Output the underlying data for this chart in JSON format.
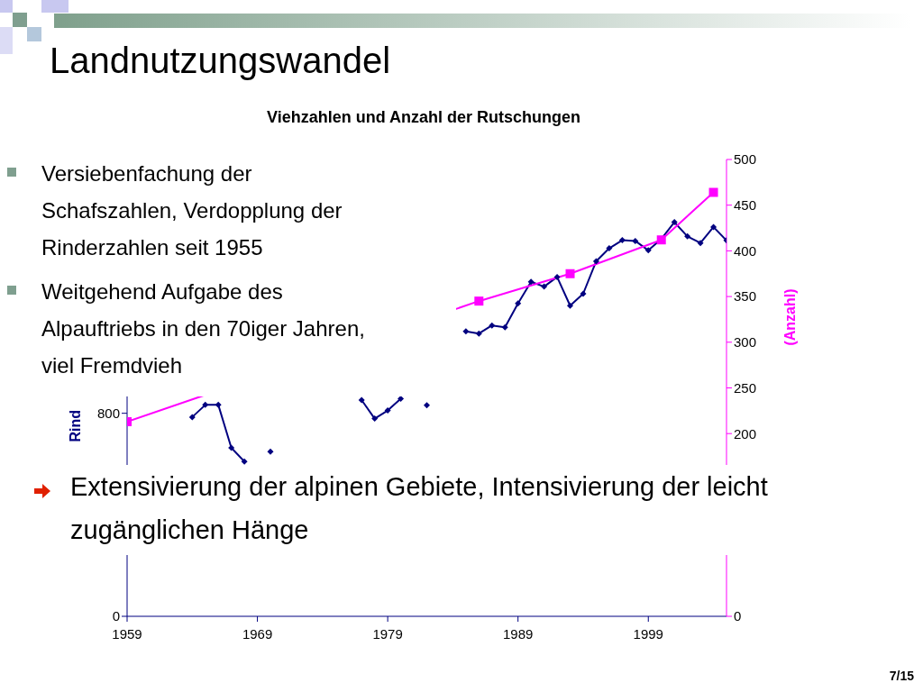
{
  "chart_data": {
    "type": "line",
    "title": "Landnutzungswandel",
    "subtitle": "Viehzahlen und Anzahl der Rutschungen",
    "ylabel": "Rind",
    "y2label": "(Anzahl)",
    "x": [
      1964,
      1965,
      1966,
      1967,
      1968,
      1969,
      1970,
      1971,
      1972,
      1973,
      1974,
      1975,
      1976,
      1977,
      1978,
      1979,
      1980,
      1981,
      1982,
      1983,
      1984,
      1985,
      1986,
      1987,
      1988,
      1989,
      1990,
      1991,
      1992,
      1993,
      1994,
      1995,
      1996,
      1997,
      1998,
      1999,
      2000,
      2001,
      2002,
      2003,
      2004,
      2005
    ],
    "series": [
      {
        "color": "#000080",
        "marker": "diamond",
        "values": [
          785,
          833,
          833,
          664,
          610,
          null,
          649,
          null,
          null,
          null,
          null,
          null,
          null,
          852,
          779,
          811,
          857,
          null,
          832,
          null,
          null,
          1123,
          1114,
          1146,
          1139,
          1233,
          1318,
          1299,
          1337,
          1224,
          1271,
          1399,
          1450,
          1482,
          1479,
          1442,
          1487,
          1553,
          1497,
          1471,
          1534,
          1481
        ]
      },
      {
        "color": "#ff00ff",
        "marker": "square",
        "axis": "y2",
        "x": [
          1959,
          1986,
          1993,
          2000,
          2004
        ],
        "values": [
          213,
          345,
          375,
          412,
          464
        ]
      }
    ],
    "xlim": [
      1959,
      2005
    ],
    "xticks": [
      1959,
      1969,
      1979,
      1989,
      1999
    ],
    "ylim": [
      0,
      1800
    ],
    "yticks": [
      0,
      800
    ],
    "y2lim": [
      0,
      500
    ],
    "y2ticks": [
      0,
      200,
      250,
      300,
      350,
      400,
      450,
      500
    ],
    "annotations": [
      "Versiebenfachung der Schafszahlen, Verdopplung der Rinderzahlen seit 1955",
      "Weitgehend Aufgabe des Alpauftriebs in den 70iger Jahren, viel Fremdvieh",
      "Extensivierung der alpinen Gebiete, Intensivierung der leicht zugänglichen Hänge",
      "7/15"
    ]
  }
}
